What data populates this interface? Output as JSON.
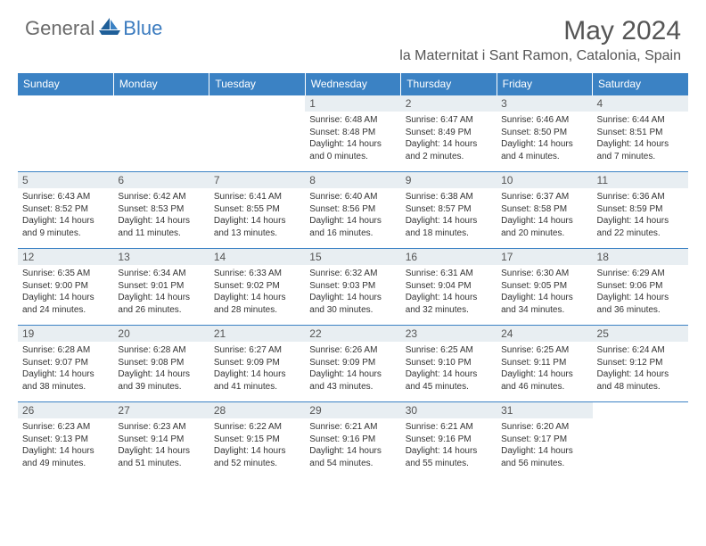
{
  "brand": {
    "text_general": "General",
    "text_blue": "Blue"
  },
  "title": "May 2024",
  "location": "la Maternitat i Sant Ramon, Catalonia, Spain",
  "colors": {
    "header_bg": "#3b82c4",
    "header_text": "#ffffff",
    "daynum_bg": "#e8eef2",
    "body_text": "#333333",
    "title_text": "#555555",
    "row_border": "#3b82c4"
  },
  "calendar": {
    "type": "table",
    "day_headers": [
      "Sunday",
      "Monday",
      "Tuesday",
      "Wednesday",
      "Thursday",
      "Friday",
      "Saturday"
    ],
    "cell_fontsize": 10,
    "header_fontsize": 12,
    "weeks": [
      [
        {
          "n": "",
          "sr": "",
          "ss": "",
          "dl": ""
        },
        {
          "n": "",
          "sr": "",
          "ss": "",
          "dl": ""
        },
        {
          "n": "",
          "sr": "",
          "ss": "",
          "dl": ""
        },
        {
          "n": "1",
          "sr": "6:48 AM",
          "ss": "8:48 PM",
          "dl": "14 hours and 0 minutes."
        },
        {
          "n": "2",
          "sr": "6:47 AM",
          "ss": "8:49 PM",
          "dl": "14 hours and 2 minutes."
        },
        {
          "n": "3",
          "sr": "6:46 AM",
          "ss": "8:50 PM",
          "dl": "14 hours and 4 minutes."
        },
        {
          "n": "4",
          "sr": "6:44 AM",
          "ss": "8:51 PM",
          "dl": "14 hours and 7 minutes."
        }
      ],
      [
        {
          "n": "5",
          "sr": "6:43 AM",
          "ss": "8:52 PM",
          "dl": "14 hours and 9 minutes."
        },
        {
          "n": "6",
          "sr": "6:42 AM",
          "ss": "8:53 PM",
          "dl": "14 hours and 11 minutes."
        },
        {
          "n": "7",
          "sr": "6:41 AM",
          "ss": "8:55 PM",
          "dl": "14 hours and 13 minutes."
        },
        {
          "n": "8",
          "sr": "6:40 AM",
          "ss": "8:56 PM",
          "dl": "14 hours and 16 minutes."
        },
        {
          "n": "9",
          "sr": "6:38 AM",
          "ss": "8:57 PM",
          "dl": "14 hours and 18 minutes."
        },
        {
          "n": "10",
          "sr": "6:37 AM",
          "ss": "8:58 PM",
          "dl": "14 hours and 20 minutes."
        },
        {
          "n": "11",
          "sr": "6:36 AM",
          "ss": "8:59 PM",
          "dl": "14 hours and 22 minutes."
        }
      ],
      [
        {
          "n": "12",
          "sr": "6:35 AM",
          "ss": "9:00 PM",
          "dl": "14 hours and 24 minutes."
        },
        {
          "n": "13",
          "sr": "6:34 AM",
          "ss": "9:01 PM",
          "dl": "14 hours and 26 minutes."
        },
        {
          "n": "14",
          "sr": "6:33 AM",
          "ss": "9:02 PM",
          "dl": "14 hours and 28 minutes."
        },
        {
          "n": "15",
          "sr": "6:32 AM",
          "ss": "9:03 PM",
          "dl": "14 hours and 30 minutes."
        },
        {
          "n": "16",
          "sr": "6:31 AM",
          "ss": "9:04 PM",
          "dl": "14 hours and 32 minutes."
        },
        {
          "n": "17",
          "sr": "6:30 AM",
          "ss": "9:05 PM",
          "dl": "14 hours and 34 minutes."
        },
        {
          "n": "18",
          "sr": "6:29 AM",
          "ss": "9:06 PM",
          "dl": "14 hours and 36 minutes."
        }
      ],
      [
        {
          "n": "19",
          "sr": "6:28 AM",
          "ss": "9:07 PM",
          "dl": "14 hours and 38 minutes."
        },
        {
          "n": "20",
          "sr": "6:28 AM",
          "ss": "9:08 PM",
          "dl": "14 hours and 39 minutes."
        },
        {
          "n": "21",
          "sr": "6:27 AM",
          "ss": "9:09 PM",
          "dl": "14 hours and 41 minutes."
        },
        {
          "n": "22",
          "sr": "6:26 AM",
          "ss": "9:09 PM",
          "dl": "14 hours and 43 minutes."
        },
        {
          "n": "23",
          "sr": "6:25 AM",
          "ss": "9:10 PM",
          "dl": "14 hours and 45 minutes."
        },
        {
          "n": "24",
          "sr": "6:25 AM",
          "ss": "9:11 PM",
          "dl": "14 hours and 46 minutes."
        },
        {
          "n": "25",
          "sr": "6:24 AM",
          "ss": "9:12 PM",
          "dl": "14 hours and 48 minutes."
        }
      ],
      [
        {
          "n": "26",
          "sr": "6:23 AM",
          "ss": "9:13 PM",
          "dl": "14 hours and 49 minutes."
        },
        {
          "n": "27",
          "sr": "6:23 AM",
          "ss": "9:14 PM",
          "dl": "14 hours and 51 minutes."
        },
        {
          "n": "28",
          "sr": "6:22 AM",
          "ss": "9:15 PM",
          "dl": "14 hours and 52 minutes."
        },
        {
          "n": "29",
          "sr": "6:21 AM",
          "ss": "9:16 PM",
          "dl": "14 hours and 54 minutes."
        },
        {
          "n": "30",
          "sr": "6:21 AM",
          "ss": "9:16 PM",
          "dl": "14 hours and 55 minutes."
        },
        {
          "n": "31",
          "sr": "6:20 AM",
          "ss": "9:17 PM",
          "dl": "14 hours and 56 minutes."
        },
        {
          "n": "",
          "sr": "",
          "ss": "",
          "dl": ""
        }
      ]
    ],
    "labels": {
      "sunrise": "Sunrise:",
      "sunset": "Sunset:",
      "daylight": "Daylight:"
    }
  }
}
